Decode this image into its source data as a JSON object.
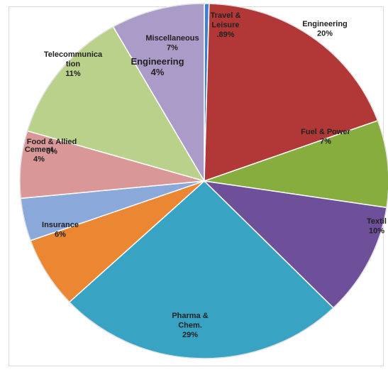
{
  "chart_data": {
    "type": "pie",
    "title": "",
    "slices": [
      {
        "label": "Travel & Leisure",
        "display_lines": [
          "Travel &",
          "Leisure"
        ],
        "value_label": ".89%",
        "value": 0.89,
        "color": "#3f7fcf"
      },
      {
        "label": "Engineering",
        "display_lines": [
          "Engineering"
        ],
        "value_label": "20%",
        "value": 20,
        "color": "#b23838"
      },
      {
        "label": "Fuel & Power",
        "display_lines": [
          "Fuel & Power"
        ],
        "value_label": "7%",
        "value": 7,
        "color": "#86ad3e"
      },
      {
        "label": "Textil",
        "display_lines": [
          "Textil"
        ],
        "value_label": "10%",
        "value": 10,
        "color": "#6e4f9a"
      },
      {
        "label": "Pharma & Chem.",
        "display_lines": [
          "Pharma &",
          "Chem."
        ],
        "value_label": "29%",
        "value": 29,
        "color": "#38a3c3"
      },
      {
        "label": "Insurance",
        "display_lines": [
          "Insurance"
        ],
        "value_label": "6%",
        "value": 6,
        "color": "#eb8632"
      },
      {
        "label": "Cement",
        "display_lines": [
          "Cement"
        ],
        "value_label": "4%",
        "value": 4,
        "color": "#8aa9da"
      },
      {
        "label": "Food & Allied",
        "display_lines": [
          "Food & Allied"
        ],
        "value_label": "6%",
        "value": 6,
        "color": "#da9797"
      },
      {
        "label": "Telecommunication",
        "display_lines": [
          "Telecommunica",
          "tion"
        ],
        "value_label": "11%",
        "value": 11,
        "color": "#b9d18a"
      },
      {
        "label": "Engineering",
        "display_lines": [
          "Engineering"
        ],
        "value_label": "4%",
        "value": 4,
        "color": "#b9d18a"
      },
      {
        "label": "Miscellaneous",
        "display_lines": [
          "Miscellaneous"
        ],
        "value_label": "7%",
        "value": 7,
        "color": "#ab9bc8"
      }
    ]
  }
}
